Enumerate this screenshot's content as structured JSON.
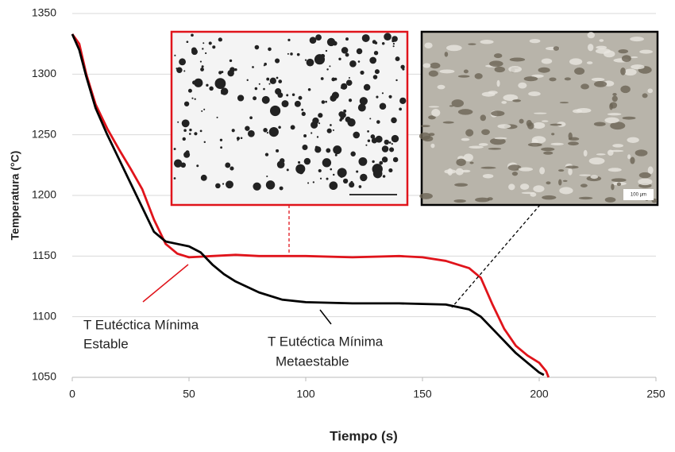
{
  "chart_data": {
    "type": "line",
    "xlabel": "Tiempo (s)",
    "ylabel": "Temperatura (°C)",
    "xlim": [
      0,
      250
    ],
    "xticks": [
      0,
      50,
      100,
      150,
      200,
      250
    ],
    "ylim": [
      1050,
      1350
    ],
    "yticks": [
      1050,
      1100,
      1150,
      1200,
      1250,
      1300,
      1350
    ],
    "grid": true,
    "series": [
      {
        "color": "#e0141b",
        "x": [
          0,
          3,
          6,
          10,
          15,
          20,
          25,
          30,
          35,
          40,
          45,
          50,
          60,
          70,
          80,
          100,
          120,
          140,
          150,
          160,
          170,
          175,
          180,
          185,
          190,
          195,
          200,
          203,
          204
        ],
        "values": [
          1333,
          1325,
          1300,
          1275,
          1255,
          1238,
          1222,
          1205,
          1180,
          1160,
          1152,
          1149,
          1150,
          1151,
          1150,
          1150,
          1149,
          1150,
          1149,
          1146,
          1140,
          1132,
          1110,
          1090,
          1076,
          1068,
          1062,
          1055,
          1050
        ]
      },
      {
        "color": "#000000",
        "x": [
          0,
          3,
          6,
          10,
          15,
          20,
          25,
          30,
          35,
          40,
          45,
          50,
          55,
          60,
          65,
          70,
          80,
          90,
          100,
          120,
          140,
          160,
          170,
          175,
          180,
          185,
          190,
          195,
          200,
          202
        ],
        "values": [
          1333,
          1320,
          1298,
          1272,
          1250,
          1230,
          1210,
          1190,
          1170,
          1162,
          1160,
          1158,
          1153,
          1143,
          1135,
          1129,
          1120,
          1114,
          1112,
          1111,
          1111,
          1110,
          1106,
          1100,
          1090,
          1080,
          1070,
          1062,
          1054,
          1052
        ]
      }
    ],
    "annotations": [
      {
        "lines": [
          "T Eutéctica Mínima",
          "Estable"
        ]
      },
      {
        "lines": [
          "T Eutéctica Mínima",
          "Metaestable"
        ]
      }
    ],
    "inset_scale_label": "100 µm"
  }
}
